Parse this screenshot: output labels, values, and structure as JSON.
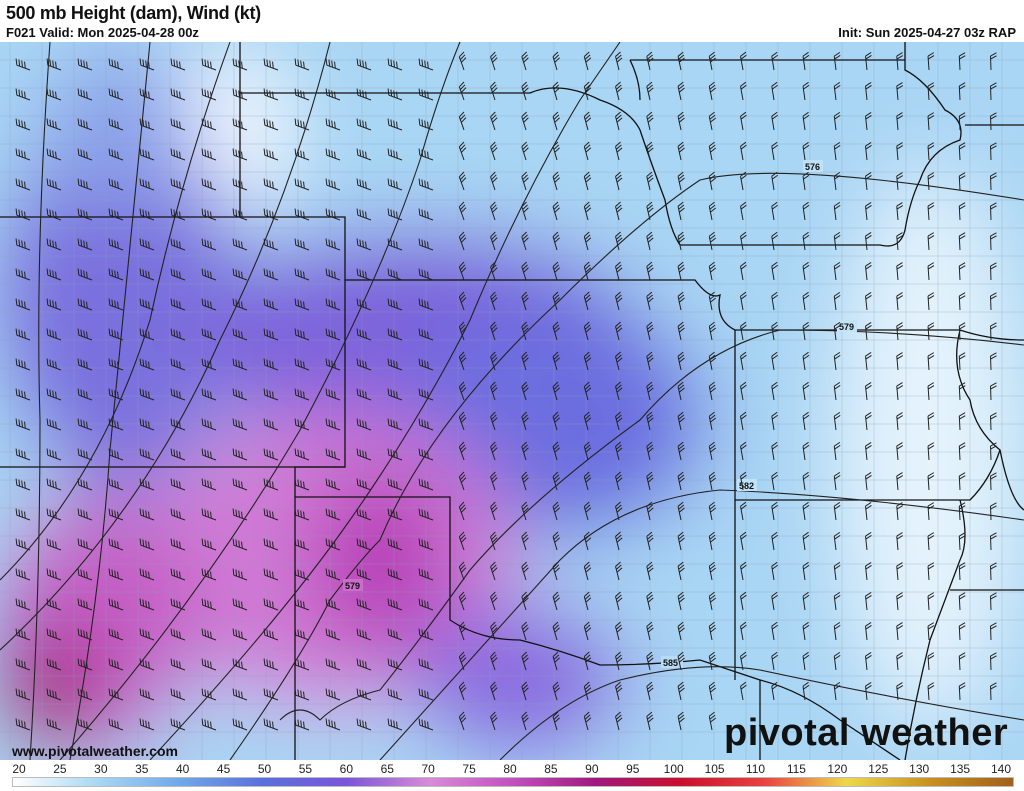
{
  "header": {
    "title": "500 mb Height (dam), Wind (kt)",
    "valid": "F021 Valid: Mon 2025-04-28 00z",
    "init": "Init: Sun 2025-04-27 03z RAP"
  },
  "map": {
    "contour_labels": [
      "576",
      "579",
      "582",
      "579",
      "585"
    ]
  },
  "branding": {
    "url": "www.pivotalweather.com",
    "logo": "pivotal weather"
  },
  "colorbar": {
    "ticks": [
      "20",
      "25",
      "30",
      "35",
      "40",
      "45",
      "50",
      "55",
      "60",
      "65",
      "70",
      "75",
      "80",
      "85",
      "90",
      "95",
      "100",
      "105",
      "110",
      "115",
      "120",
      "125",
      "130",
      "135",
      "140"
    ],
    "colors": [
      "#ffffff",
      "#a8d8f4",
      "#6fa8ea",
      "#5a6fdc",
      "#7a55d8",
      "#d88ad8",
      "#c24fc0",
      "#a0187e",
      "#c8102e",
      "#e84040",
      "#ecd84c",
      "#c89020",
      "#a0601a"
    ]
  }
}
